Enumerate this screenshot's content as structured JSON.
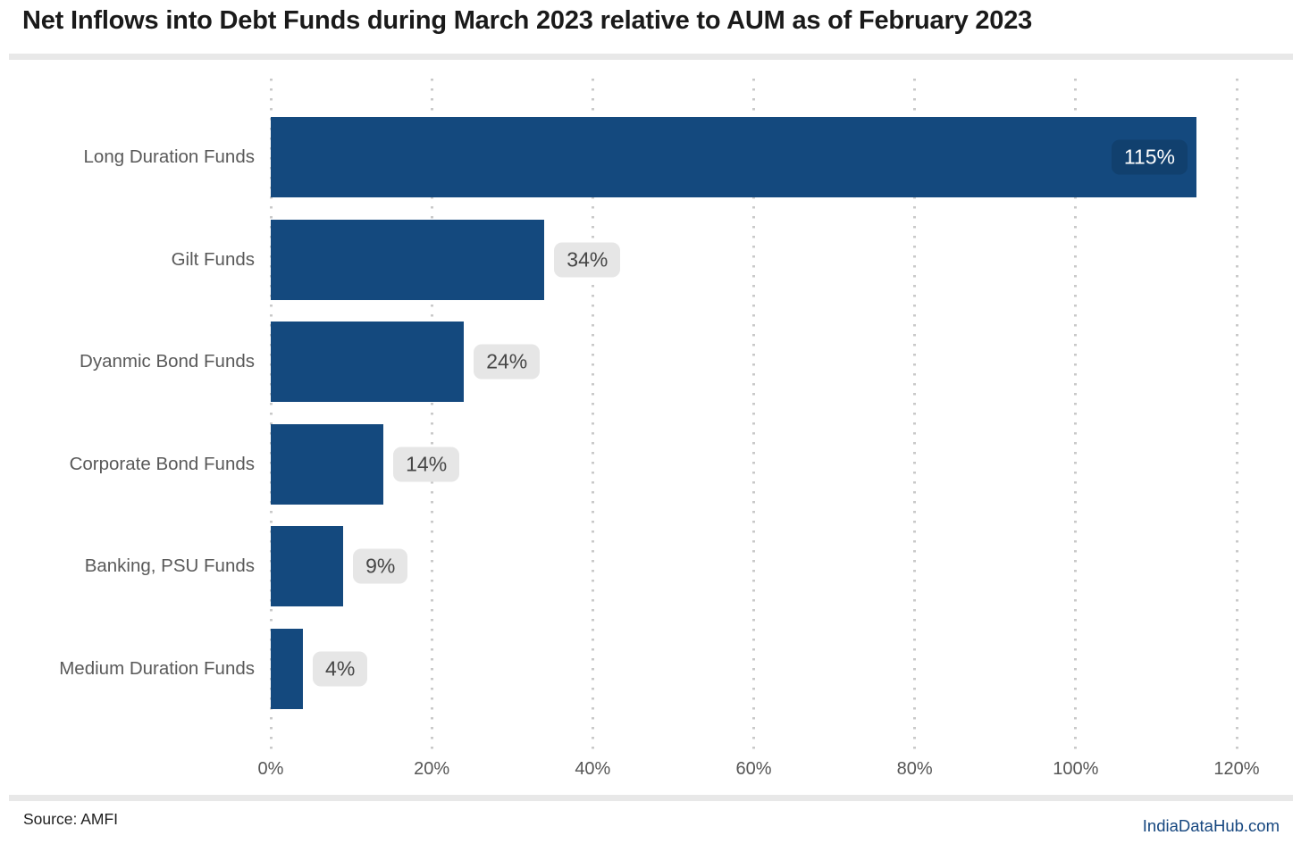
{
  "header": {
    "title": "Net Inflows into Debt Funds during March 2023 relative to AUM as of February 2023"
  },
  "footer": {
    "source": "Source: AMFI",
    "brand": "IndiaDataHub.com"
  },
  "colors": {
    "bar": "#14497E",
    "inside_label_bg": "#11406E",
    "outside_label_bg": "#e6e6e6",
    "brand_blue": "#15467F",
    "gridline": "#c9c9c9"
  },
  "chart_data": {
    "type": "bar",
    "orientation": "horizontal",
    "title": "Net Inflows into Debt Funds during March 2023 relative to AUM as of February 2023",
    "categories": [
      "Long Duration Funds",
      "Gilt Funds",
      "Dyanmic Bond Funds",
      "Corporate Bond Funds",
      "Banking, PSU Funds",
      "Medium Duration Funds"
    ],
    "values": [
      115,
      34,
      24,
      14,
      9,
      4
    ],
    "data_labels": [
      "115%",
      "34%",
      "24%",
      "14%",
      "9%",
      "4%"
    ],
    "x_ticks": [
      "0%",
      "20%",
      "40%",
      "60%",
      "80%",
      "100%",
      "120%"
    ],
    "x_tick_values": [
      0,
      20,
      40,
      60,
      80,
      100,
      120
    ],
    "xlim": [
      0,
      120
    ],
    "xlabel": "",
    "ylabel": "",
    "grid": "vertical-dotted",
    "legend": "none",
    "inside_label_min_fraction": 0.85
  }
}
